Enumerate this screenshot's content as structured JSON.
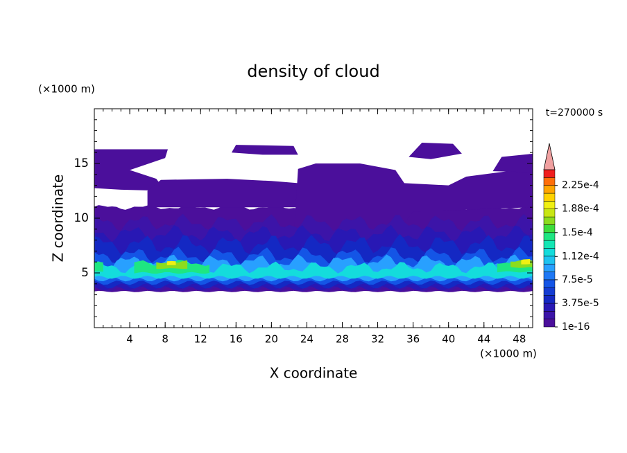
{
  "chart_data": {
    "type": "contour",
    "title": "density of cloud",
    "xlabel": "X coordinate",
    "ylabel": "Z coordinate",
    "x_unit": "(×1000 m)",
    "y_unit": "(×1000 m)",
    "time_label": "t=270000 s",
    "xlim": [
      0,
      49.5
    ],
    "ylim": [
      0,
      20
    ],
    "xticks": [
      4,
      8,
      12,
      16,
      20,
      24,
      28,
      32,
      36,
      40,
      44,
      48
    ],
    "yticks": [
      5,
      10,
      15
    ],
    "colorbar": {
      "levels": [
        1e-16,
        1.25e-05,
        2.5e-05,
        3.75e-05,
        5e-05,
        6.25e-05,
        7.5e-05,
        8.75e-05,
        0.0001,
        0.0001125,
        0.000125,
        0.0001375,
        0.00015,
        0.0001625,
        0.000175,
        0.0001875,
        0.0002,
        0.0002125,
        0.000225,
        0.0002375
      ],
      "colors": [
        "#4b0f9b",
        "#3c14a8",
        "#2818b4",
        "#1428c3",
        "#143cd2",
        "#1455e6",
        "#1e78f5",
        "#28a0ff",
        "#1ec3f0",
        "#14dcdc",
        "#14e6b4",
        "#1ee682",
        "#3cdc3c",
        "#8cdc1e",
        "#c8e614",
        "#f0f014",
        "#ffd200",
        "#ffa500",
        "#ff6e0a",
        "#f01e1e"
      ],
      "extend_color": "#f0a0a0",
      "ticks": [
        {
          "value": 1e-16,
          "label": "1e-16"
        },
        {
          "value": 3.75e-05,
          "label": "3.75e-5"
        },
        {
          "value": 7.5e-05,
          "label": "7.5e-5"
        },
        {
          "value": 0.000112,
          "label": "1.12e-4"
        },
        {
          "value": 0.00015,
          "label": "1.5e-4"
        },
        {
          "value": 0.000188,
          "label": "1.88e-4"
        },
        {
          "value": 0.000225,
          "label": "2.25e-4"
        }
      ]
    }
  }
}
